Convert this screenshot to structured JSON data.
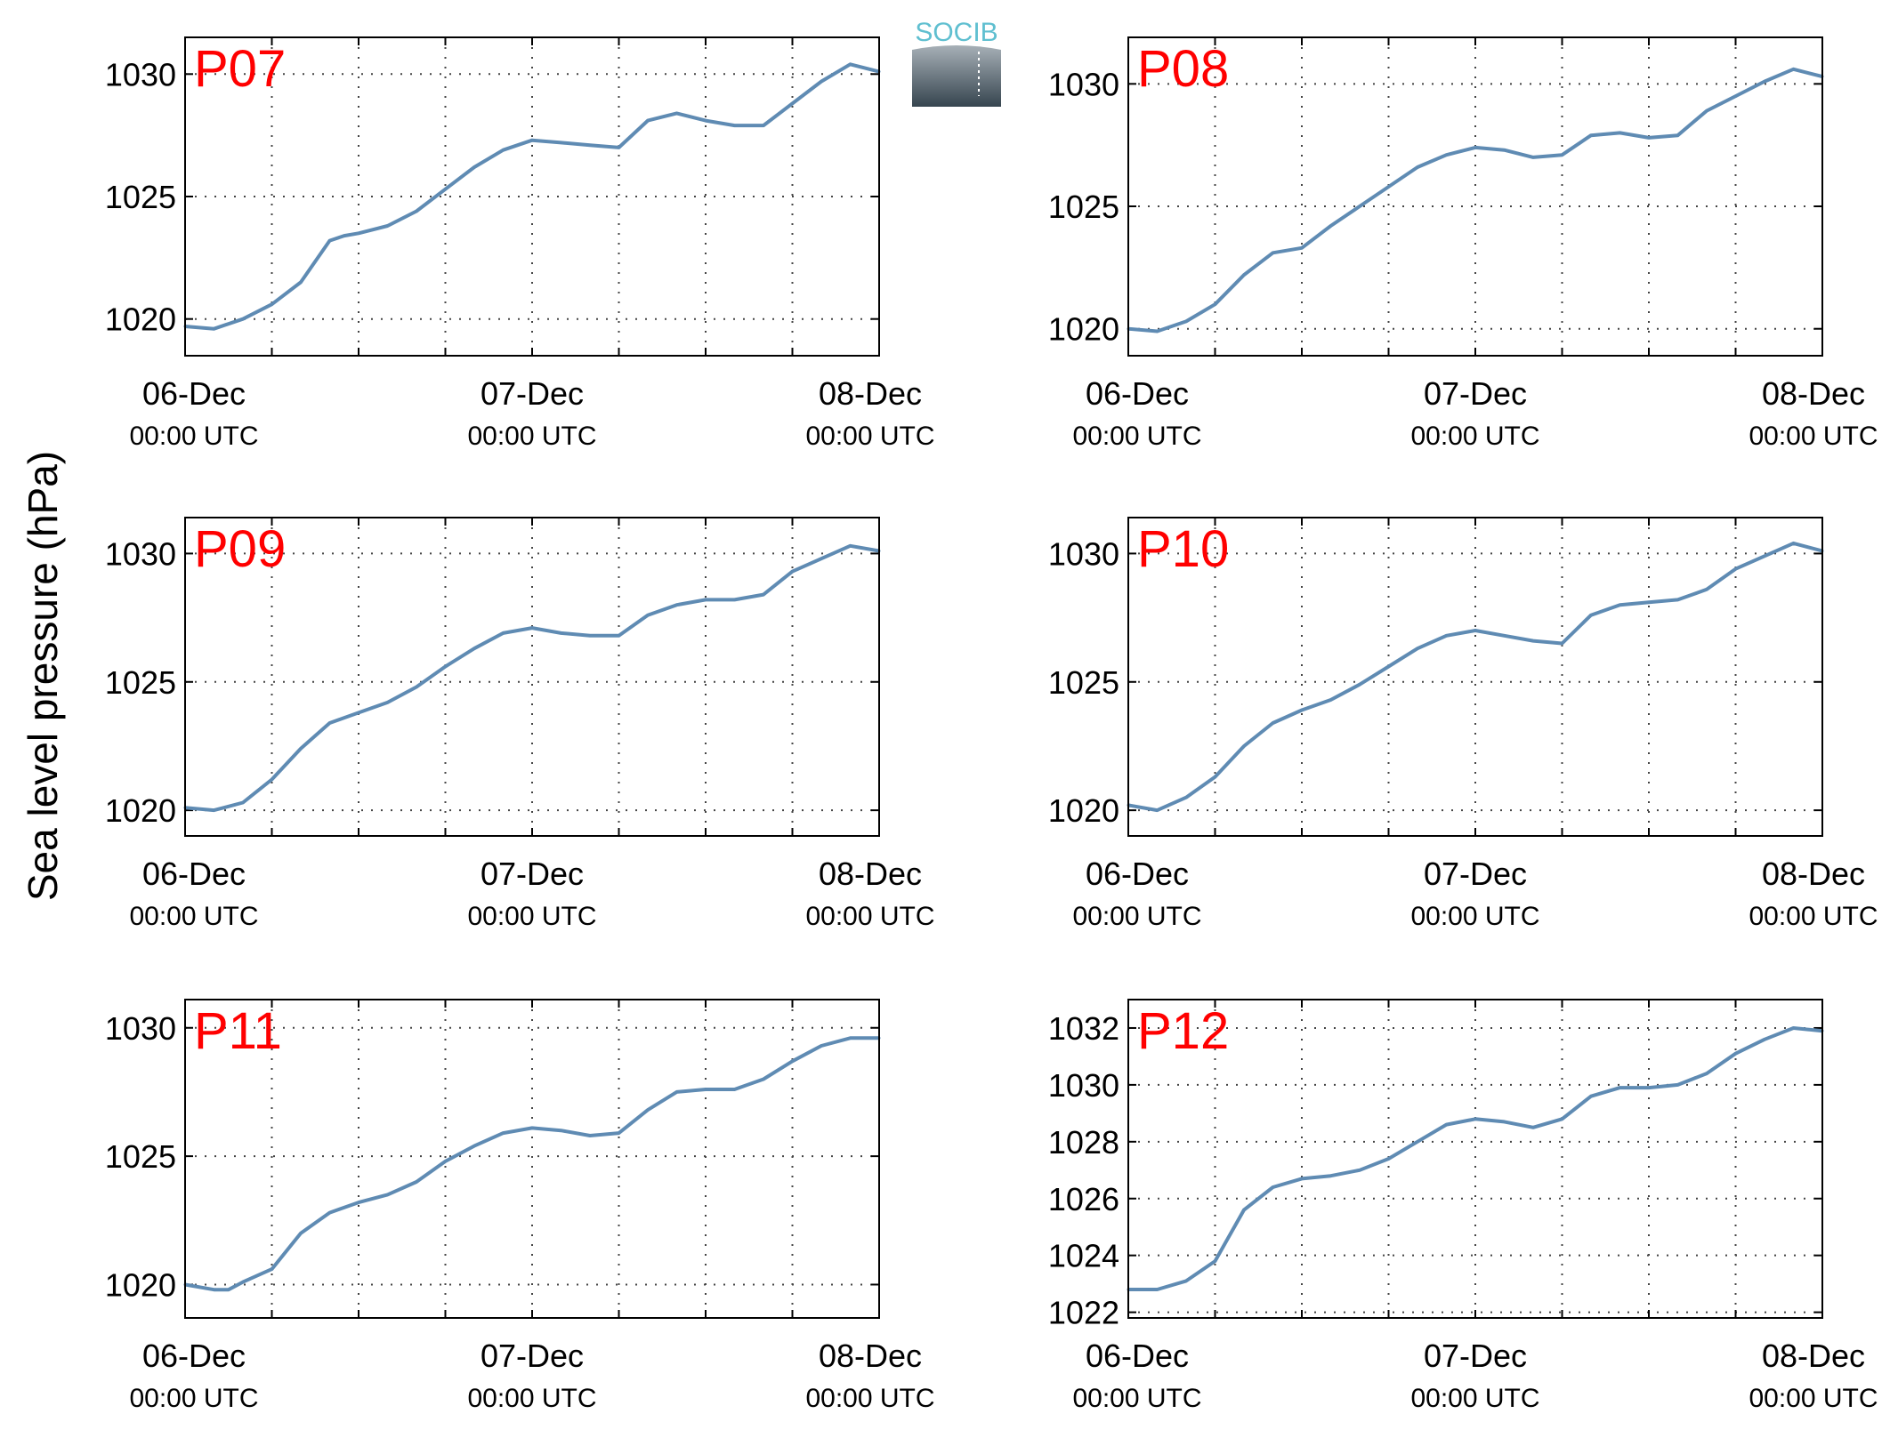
{
  "ylabel": "Sea level pressure (hPa)",
  "logo": {
    "text": "SOCIB"
  },
  "colors": {
    "line": "#5f8bb3",
    "panel_label": "#ff0000",
    "axis": "#000000",
    "grid": "#444444"
  },
  "x_ticks": [
    {
      "date": "06-Dec",
      "time": "00:00 UTC"
    },
    {
      "date": "07-Dec",
      "time": "00:00 UTC"
    },
    {
      "date": "08-Dec",
      "time": "00:00 UTC"
    }
  ],
  "chart_data": [
    {
      "type": "line",
      "label": "P07",
      "x_range": [
        "2023-12-06T00:00",
        "2023-12-08T00:00"
      ],
      "ylim": [
        1018.5,
        1031.5
      ],
      "yticks": [
        1020,
        1025,
        1030
      ],
      "grid": true,
      "x_hours": [
        0,
        2,
        4,
        6,
        8,
        10,
        11,
        12,
        14,
        16,
        18,
        20,
        22,
        24,
        26,
        28,
        30,
        32,
        34,
        36,
        38,
        40,
        42,
        44,
        46,
        48
      ],
      "values": [
        1019.7,
        1019.6,
        1020.0,
        1020.6,
        1021.5,
        1023.2,
        1023.4,
        1023.5,
        1023.8,
        1024.4,
        1025.3,
        1026.2,
        1026.9,
        1027.3,
        1027.2,
        1027.1,
        1027.0,
        1028.1,
        1028.4,
        1028.1,
        1027.9,
        1027.9,
        1028.8,
        1029.7,
        1030.4,
        1030.1
      ]
    },
    {
      "type": "line",
      "label": "P08",
      "x_range": [
        "2023-12-06T00:00",
        "2023-12-08T00:00"
      ],
      "ylim": [
        1018.9,
        1031.9
      ],
      "yticks": [
        1020,
        1025,
        1030
      ],
      "grid": true,
      "x_hours": [
        0,
        2,
        4,
        6,
        8,
        10,
        12,
        14,
        16,
        18,
        20,
        22,
        24,
        26,
        28,
        30,
        32,
        34,
        36,
        38,
        40,
        42,
        44,
        46,
        48
      ],
      "values": [
        1020.0,
        1019.9,
        1020.3,
        1021.0,
        1022.2,
        1023.1,
        1023.3,
        1024.2,
        1025.0,
        1025.8,
        1026.6,
        1027.1,
        1027.4,
        1027.3,
        1027.0,
        1027.1,
        1027.9,
        1028.0,
        1027.8,
        1027.9,
        1028.9,
        1029.5,
        1030.1,
        1030.6,
        1030.3
      ]
    },
    {
      "type": "line",
      "label": "P09",
      "x_range": [
        "2023-12-06T00:00",
        "2023-12-08T00:00"
      ],
      "ylim": [
        1019.0,
        1031.4
      ],
      "yticks": [
        1020,
        1025,
        1030
      ],
      "grid": true,
      "x_hours": [
        0,
        2,
        4,
        6,
        8,
        10,
        12,
        14,
        16,
        18,
        20,
        22,
        24,
        26,
        28,
        30,
        32,
        34,
        36,
        38,
        40,
        42,
        44,
        46,
        48
      ],
      "values": [
        1020.1,
        1020.0,
        1020.3,
        1021.2,
        1022.4,
        1023.4,
        1023.8,
        1024.2,
        1024.8,
        1025.6,
        1026.3,
        1026.9,
        1027.1,
        1026.9,
        1026.8,
        1026.8,
        1027.6,
        1028.0,
        1028.2,
        1028.2,
        1028.4,
        1029.3,
        1029.8,
        1030.3,
        1030.1
      ]
    },
    {
      "type": "line",
      "label": "P10",
      "x_range": [
        "2023-12-06T00:00",
        "2023-12-08T00:00"
      ],
      "ylim": [
        1019.0,
        1031.4
      ],
      "yticks": [
        1020,
        1025,
        1030
      ],
      "grid": true,
      "x_hours": [
        0,
        2,
        4,
        6,
        8,
        10,
        12,
        14,
        16,
        18,
        20,
        22,
        24,
        26,
        28,
        30,
        32,
        34,
        36,
        38,
        40,
        42,
        44,
        46,
        48
      ],
      "values": [
        1020.2,
        1020.0,
        1020.5,
        1021.3,
        1022.5,
        1023.4,
        1023.9,
        1024.3,
        1024.9,
        1025.6,
        1026.3,
        1026.8,
        1027.0,
        1026.8,
        1026.6,
        1026.5,
        1027.6,
        1028.0,
        1028.1,
        1028.2,
        1028.6,
        1029.4,
        1029.9,
        1030.4,
        1030.1
      ]
    },
    {
      "type": "line",
      "label": "P11",
      "x_range": [
        "2023-12-06T00:00",
        "2023-12-08T00:00"
      ],
      "ylim": [
        1018.7,
        1031.1
      ],
      "yticks": [
        1020,
        1025,
        1030
      ],
      "grid": true,
      "x_hours": [
        0,
        2,
        3,
        4,
        6,
        8,
        10,
        12,
        14,
        16,
        18,
        20,
        22,
        24,
        26,
        28,
        30,
        32,
        34,
        36,
        38,
        40,
        42,
        44,
        46,
        48
      ],
      "values": [
        1020.0,
        1019.8,
        1019.8,
        1020.1,
        1020.6,
        1022.0,
        1022.8,
        1023.2,
        1023.5,
        1024.0,
        1024.8,
        1025.4,
        1025.9,
        1026.1,
        1026.0,
        1025.8,
        1025.9,
        1026.8,
        1027.5,
        1027.6,
        1027.6,
        1028.0,
        1028.7,
        1029.3,
        1029.6,
        1029.6
      ]
    },
    {
      "type": "line",
      "label": "P12",
      "x_range": [
        "2023-12-06T00:00",
        "2023-12-08T00:00"
      ],
      "ylim": [
        1021.8,
        1033.0
      ],
      "yticks": [
        1022,
        1024,
        1026,
        1028,
        1030,
        1032
      ],
      "grid": true,
      "x_hours": [
        0,
        2,
        4,
        6,
        8,
        10,
        12,
        14,
        16,
        18,
        20,
        22,
        24,
        26,
        28,
        30,
        32,
        34,
        36,
        38,
        40,
        42,
        44,
        46,
        48
      ],
      "values": [
        1022.8,
        1022.8,
        1023.1,
        1023.8,
        1025.6,
        1026.4,
        1026.7,
        1026.8,
        1027.0,
        1027.4,
        1028.0,
        1028.6,
        1028.8,
        1028.7,
        1028.5,
        1028.8,
        1029.6,
        1029.9,
        1029.9,
        1030.0,
        1030.4,
        1031.1,
        1031.6,
        1032.0,
        1031.9
      ]
    }
  ]
}
